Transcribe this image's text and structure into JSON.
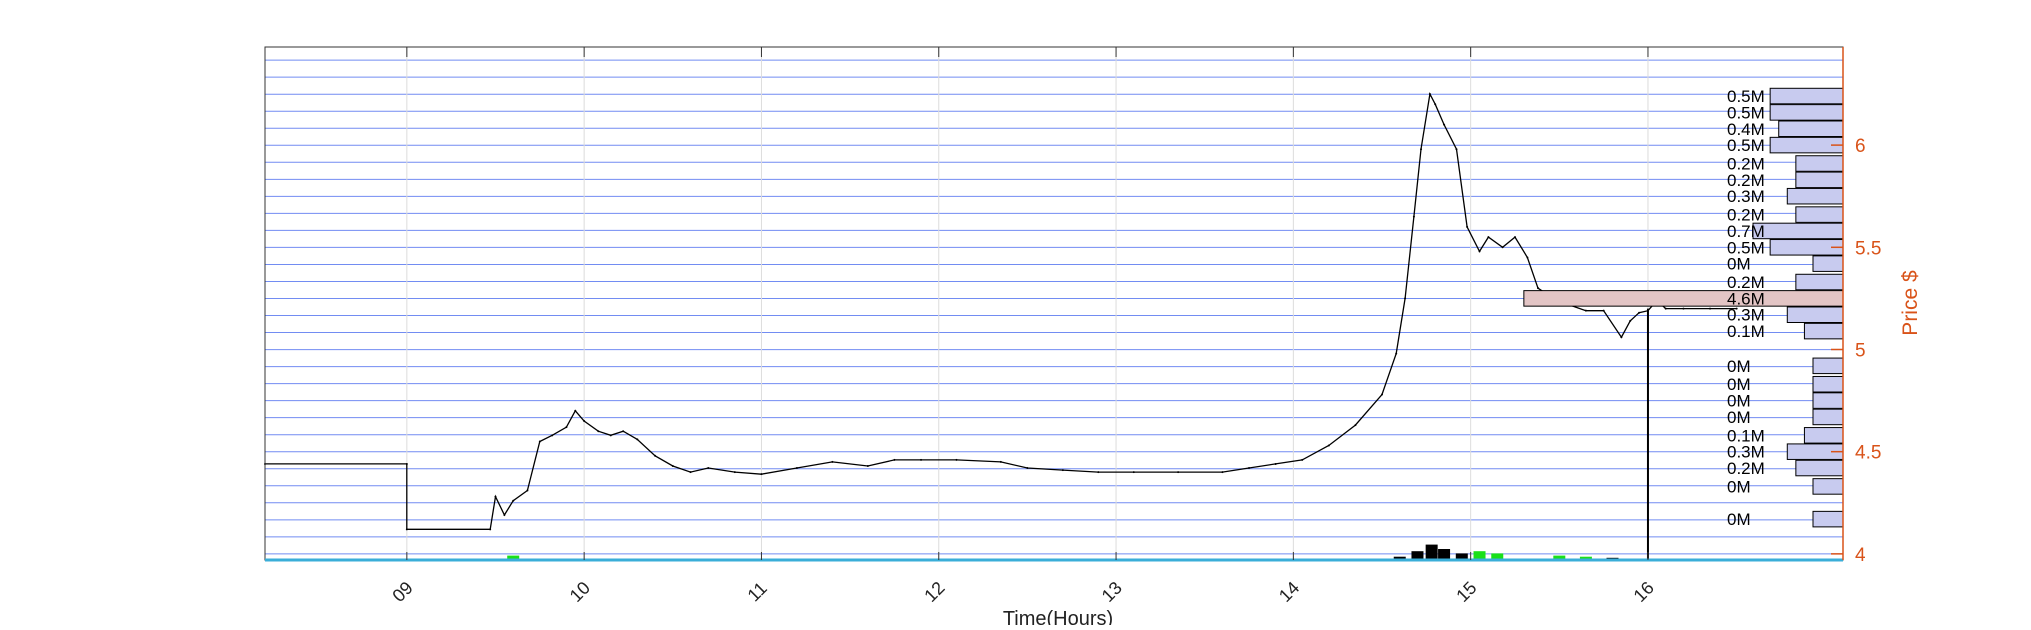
{
  "chart_data": {
    "type": "line",
    "title": "",
    "xlabel": "Time(Hours)",
    "ylabel": "Price $",
    "xlim": [
      8.2,
      17.1
    ],
    "ylim": [
      3.97,
      6.48
    ],
    "x_ticks": [
      "09",
      "10",
      "11",
      "12",
      "13",
      "14",
      "15",
      "16"
    ],
    "x_tick_values": [
      9,
      10,
      11,
      12,
      13,
      14,
      15,
      16
    ],
    "y_ticks": [
      "4",
      "4.5",
      "5",
      "5.5",
      "6"
    ],
    "y_tick_values": [
      4.0,
      4.5,
      5.0,
      5.5,
      6.0
    ],
    "y_axis_side": "right",
    "grid": true,
    "colors": {
      "axis": "#d95319",
      "price_line": "#000000",
      "price_levels": "#5a78f0",
      "profile_fill": "#c8cbef",
      "profile_highlight_fill": "#e3c5c5",
      "volume_up": "#19e019",
      "volume_down": "#e02020"
    },
    "series": [
      {
        "values": [
          [
            8.2,
            4.44
          ],
          [
            9.0,
            4.44
          ],
          [
            9.0,
            4.12
          ],
          [
            9.47,
            4.12
          ],
          [
            9.5,
            4.28
          ],
          [
            9.55,
            4.19
          ],
          [
            9.6,
            4.26
          ],
          [
            9.68,
            4.31
          ],
          [
            9.75,
            4.55
          ],
          [
            9.82,
            4.58
          ],
          [
            9.9,
            4.62
          ],
          [
            9.95,
            4.7
          ],
          [
            10.0,
            4.65
          ],
          [
            10.08,
            4.6
          ],
          [
            10.15,
            4.58
          ],
          [
            10.22,
            4.6
          ],
          [
            10.3,
            4.56
          ],
          [
            10.4,
            4.48
          ],
          [
            10.5,
            4.43
          ],
          [
            10.6,
            4.4
          ],
          [
            10.7,
            4.42
          ],
          [
            10.85,
            4.4
          ],
          [
            11.0,
            4.39
          ],
          [
            11.2,
            4.42
          ],
          [
            11.4,
            4.45
          ],
          [
            11.6,
            4.43
          ],
          [
            11.75,
            4.46
          ],
          [
            11.9,
            4.46
          ],
          [
            12.1,
            4.46
          ],
          [
            12.35,
            4.45
          ],
          [
            12.5,
            4.42
          ],
          [
            12.7,
            4.41
          ],
          [
            12.9,
            4.4
          ],
          [
            13.1,
            4.4
          ],
          [
            13.35,
            4.4
          ],
          [
            13.6,
            4.4
          ],
          [
            13.75,
            4.42
          ],
          [
            13.9,
            4.44
          ],
          [
            14.05,
            4.46
          ],
          [
            14.2,
            4.53
          ],
          [
            14.35,
            4.63
          ],
          [
            14.5,
            4.78
          ],
          [
            14.58,
            4.98
          ],
          [
            14.63,
            5.25
          ],
          [
            14.68,
            5.65
          ],
          [
            14.72,
            5.98
          ],
          [
            14.77,
            6.25
          ],
          [
            14.8,
            6.2
          ],
          [
            14.85,
            6.1
          ],
          [
            14.92,
            5.98
          ],
          [
            14.98,
            5.6
          ],
          [
            15.05,
            5.48
          ],
          [
            15.1,
            5.55
          ],
          [
            15.18,
            5.5
          ],
          [
            15.25,
            5.55
          ],
          [
            15.32,
            5.45
          ],
          [
            15.38,
            5.3
          ],
          [
            15.45,
            5.26
          ],
          [
            15.55,
            5.22
          ],
          [
            15.65,
            5.19
          ],
          [
            15.75,
            5.19
          ],
          [
            15.85,
            5.06
          ],
          [
            15.9,
            5.14
          ],
          [
            15.95,
            5.18
          ],
          [
            16.0,
            5.19
          ],
          [
            16.05,
            5.24
          ],
          [
            16.1,
            5.2
          ],
          [
            16.2,
            5.2
          ],
          [
            16.35,
            5.2
          ],
          [
            16.5,
            5.2
          ]
        ]
      }
    ],
    "volume_profile": [
      {
        "price": 6.24,
        "label": "0.5M",
        "volume": 0.5
      },
      {
        "price": 6.16,
        "label": "0.5M",
        "volume": 0.5
      },
      {
        "price": 6.08,
        "label": "0.4M",
        "volume": 0.4
      },
      {
        "price": 6.0,
        "label": "0.5M",
        "volume": 0.5
      },
      {
        "price": 5.91,
        "label": "0.2M",
        "volume": 0.2
      },
      {
        "price": 5.83,
        "label": "0.2M",
        "volume": 0.2
      },
      {
        "price": 5.75,
        "label": "0.3M",
        "volume": 0.3
      },
      {
        "price": 5.66,
        "label": "0.2M",
        "volume": 0.2
      },
      {
        "price": 5.58,
        "label": "0.7M",
        "volume": 0.7
      },
      {
        "price": 5.5,
        "label": "0.5M",
        "volume": 0.5
      },
      {
        "price": 5.42,
        "label": "0M",
        "volume": 0.0
      },
      {
        "price": 5.33,
        "label": "0.2M",
        "volume": 0.2
      },
      {
        "price": 5.25,
        "label": "4.6M",
        "volume": 4.6,
        "highlight": true
      },
      {
        "price": 5.17,
        "label": "0.3M",
        "volume": 0.3
      },
      {
        "price": 5.09,
        "label": "0.1M",
        "volume": 0.1
      },
      {
        "price": 4.92,
        "label": "0M",
        "volume": 0.0
      },
      {
        "price": 4.83,
        "label": "0M",
        "volume": 0.0
      },
      {
        "price": 4.75,
        "label": "0M",
        "volume": 0.0
      },
      {
        "price": 4.67,
        "label": "0M",
        "volume": 0.0
      },
      {
        "price": 4.58,
        "label": "0.1M",
        "volume": 0.1
      },
      {
        "price": 4.5,
        "label": "0.3M",
        "volume": 0.3
      },
      {
        "price": 4.42,
        "label": "0.2M",
        "volume": 0.2
      },
      {
        "price": 4.33,
        "label": "0M",
        "volume": 0.0
      },
      {
        "price": 4.17,
        "label": "0M",
        "volume": 0.0
      }
    ],
    "volume_bars": [
      {
        "x": 9.6,
        "color": "up",
        "value": 4
      },
      {
        "x": 9.7,
        "color": "down",
        "value": 1
      },
      {
        "x": 10.3,
        "color": "up",
        "value": 1
      },
      {
        "x": 12.8,
        "color": "up",
        "value": 1
      },
      {
        "x": 14.6,
        "color": "neutral",
        "value": 3
      },
      {
        "x": 14.7,
        "color": "neutral",
        "value": 8
      },
      {
        "x": 14.78,
        "color": "neutral",
        "value": 14
      },
      {
        "x": 14.85,
        "color": "neutral",
        "value": 10
      },
      {
        "x": 14.95,
        "color": "neutral",
        "value": 6
      },
      {
        "x": 15.05,
        "color": "up",
        "value": 8
      },
      {
        "x": 15.15,
        "color": "up",
        "value": 6
      },
      {
        "x": 15.5,
        "color": "up",
        "value": 4
      },
      {
        "x": 15.65,
        "color": "up",
        "value": 3
      },
      {
        "x": 15.8,
        "color": "neutral",
        "value": 2
      }
    ],
    "marker_x": 16.0
  }
}
